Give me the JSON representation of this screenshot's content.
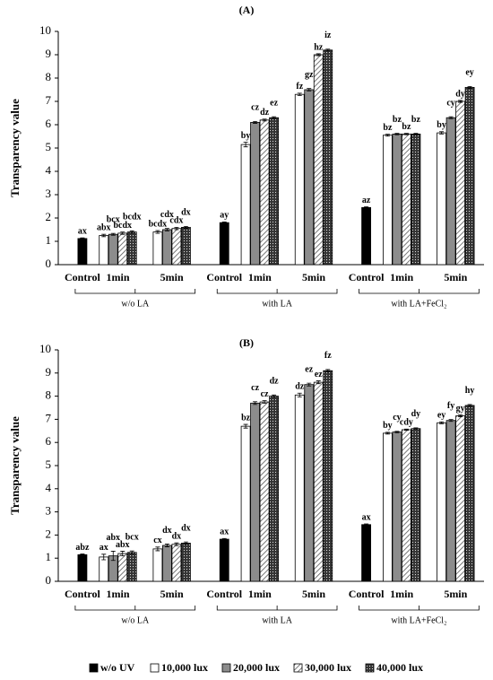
{
  "chart_data": [
    {
      "type": "bar",
      "title": "(A)",
      "y_label": "Transparency value",
      "categories": [
        "Control",
        "1min",
        "5min",
        "Control",
        "1min",
        "5min",
        "Control",
        "1min",
        "5min"
      ],
      "groups": [
        "w/o LA",
        "with LA",
        "with LA+FeCl₂"
      ],
      "ylim": [
        0,
        10
      ],
      "yticks": [
        0,
        1,
        2,
        3,
        4,
        5,
        6,
        7,
        8,
        9,
        10
      ],
      "series": [
        {
          "name": "w/o UV",
          "color": "#000000",
          "pattern": "solid",
          "values": [
            1.12,
            null,
            null,
            1.8,
            null,
            null,
            2.45,
            null,
            null
          ],
          "errors": [
            0.03,
            null,
            null,
            0.03,
            null,
            null,
            0.03,
            null,
            null
          ],
          "labels": [
            "ax",
            null,
            null,
            "ay",
            null,
            null,
            "az",
            null,
            null
          ]
        },
        {
          "name": "10,000 lux",
          "color": "#ffffff",
          "pattern": "solid",
          "values": [
            null,
            1.25,
            1.4,
            null,
            5.15,
            7.3,
            null,
            5.55,
            5.65
          ],
          "errors": [
            null,
            0.05,
            0.06,
            null,
            0.1,
            0.05,
            null,
            0.04,
            0.05
          ],
          "labels": [
            null,
            "abx",
            "bcdx",
            null,
            "by",
            "fz",
            null,
            "bz",
            "by"
          ]
        },
        {
          "name": "20,000 lux",
          "color": "#8c8c8c",
          "pattern": "solid",
          "values": [
            null,
            1.3,
            1.5,
            null,
            6.1,
            7.5,
            null,
            5.6,
            6.3
          ],
          "errors": [
            null,
            0.04,
            0.05,
            null,
            0.04,
            0.05,
            null,
            0.03,
            0.04
          ],
          "labels": [
            null,
            "bcx",
            "cdx",
            null,
            "cz",
            "gz",
            null,
            "bz",
            "cy"
          ]
        },
        {
          "name": "30,000 lux",
          "color": "#ffffff",
          "pattern": "hatch",
          "values": [
            null,
            1.35,
            1.55,
            null,
            6.2,
            9.0,
            null,
            5.6,
            7.0
          ],
          "errors": [
            null,
            0.05,
            0.05,
            null,
            0.04,
            0.04,
            null,
            0.03,
            0.04
          ],
          "labels": [
            null,
            "bcdx",
            "cdx",
            null,
            "dz",
            "hz",
            null,
            "bz",
            "dy"
          ]
        },
        {
          "name": "40,000 lux",
          "color": "#333333",
          "pattern": "dots",
          "values": [
            null,
            1.4,
            1.6,
            null,
            6.3,
            9.2,
            null,
            5.6,
            7.6
          ],
          "errors": [
            null,
            0.05,
            0.04,
            null,
            0.04,
            0.04,
            null,
            0.03,
            0.04
          ],
          "labels": [
            null,
            "bcdx",
            "dx",
            null,
            "ez",
            "iz",
            null,
            "bz",
            "ey"
          ]
        }
      ]
    },
    {
      "type": "bar",
      "title": "(B)",
      "y_label": "Transparency value",
      "categories": [
        "Control",
        "1min",
        "5min",
        "Control",
        "1min",
        "5min",
        "Control",
        "1min",
        "5min"
      ],
      "groups": [
        "w/o LA",
        "with LA",
        "with LA+FeCl₂"
      ],
      "ylim": [
        0,
        10
      ],
      "yticks": [
        0,
        1,
        2,
        3,
        4,
        5,
        6,
        7,
        8,
        9,
        10
      ],
      "series": [
        {
          "name": "w/o UV",
          "color": "#000000",
          "pattern": "solid",
          "values": [
            1.15,
            null,
            null,
            1.82,
            null,
            null,
            2.45,
            null,
            null
          ],
          "errors": [
            0.03,
            null,
            null,
            0.03,
            null,
            null,
            0.03,
            null,
            null
          ],
          "labels": [
            "abz",
            null,
            null,
            "ax",
            null,
            null,
            "ax",
            null,
            null
          ]
        },
        {
          "name": "10,000 lux",
          "color": "#ffffff",
          "pattern": "solid",
          "values": [
            null,
            1.05,
            1.4,
            null,
            6.7,
            8.05,
            null,
            6.4,
            6.85
          ],
          "errors": [
            null,
            0.12,
            0.08,
            null,
            0.08,
            0.08,
            null,
            0.04,
            0.04
          ],
          "labels": [
            null,
            "ax",
            "cx",
            null,
            "bz",
            "dz",
            null,
            "by",
            "ey"
          ]
        },
        {
          "name": "20,000 lux",
          "color": "#8c8c8c",
          "pattern": "solid",
          "values": [
            null,
            1.1,
            1.55,
            null,
            7.7,
            8.5,
            null,
            6.45,
            6.95
          ],
          "errors": [
            null,
            0.2,
            0.06,
            null,
            0.06,
            0.06,
            null,
            0.03,
            0.04
          ],
          "labels": [
            null,
            "abx",
            "dx",
            null,
            "cz",
            "ez",
            null,
            "cy",
            "fy"
          ]
        },
        {
          "name": "30,000 lux",
          "color": "#ffffff",
          "pattern": "hatch",
          "values": [
            null,
            1.2,
            1.6,
            null,
            7.75,
            8.6,
            null,
            6.55,
            7.15
          ],
          "errors": [
            null,
            0.1,
            0.06,
            null,
            0.06,
            0.06,
            null,
            0.03,
            0.04
          ],
          "labels": [
            null,
            "abx",
            "dx",
            null,
            "cz",
            "ez",
            null,
            "cdy",
            "gy"
          ]
        },
        {
          "name": "40,000 lux",
          "color": "#333333",
          "pattern": "dots",
          "values": [
            null,
            1.25,
            1.65,
            null,
            8.0,
            9.1,
            null,
            6.6,
            7.6
          ],
          "errors": [
            null,
            0.06,
            0.05,
            null,
            0.05,
            0.05,
            null,
            0.03,
            0.04
          ],
          "labels": [
            null,
            "bcx",
            "dx",
            null,
            "dz",
            "fz",
            null,
            "dy",
            "hy"
          ]
        }
      ]
    }
  ]
}
